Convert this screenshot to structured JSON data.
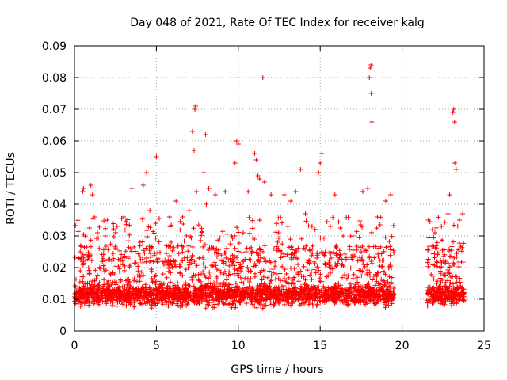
{
  "chart_data": {
    "type": "scatter",
    "title": "Day 048 of 2021, Rate Of TEC Index for receiver kalg",
    "xlabel": "GPS time / hours",
    "ylabel": "ROTI / TECUs",
    "xlim": [
      0,
      25
    ],
    "ylim": [
      0,
      0.09
    ],
    "grid": true,
    "marker": "+",
    "color": "#ff0000",
    "xticks": [
      0,
      5,
      10,
      15,
      20,
      25
    ],
    "yticks": [
      0,
      0.01,
      0.02,
      0.03,
      0.04,
      0.05,
      0.06,
      0.07,
      0.08,
      0.09
    ],
    "xtick_labels": [
      "0",
      "5",
      "10",
      "15",
      "20",
      "25"
    ],
    "ytick_labels": [
      "0",
      "0.01",
      "0.02",
      "0.03",
      "0.04",
      "0.05",
      "0.06",
      "0.07",
      "0.08",
      "0.09"
    ],
    "coverage_hours": [
      [
        0,
        19.5
      ],
      [
        21.5,
        23.8
      ]
    ],
    "series": [
      {
        "name": "ROTI",
        "points": [
          [
            0.2,
            0.012
          ],
          [
            0.35,
            0.025
          ],
          [
            0.5,
            0.044
          ],
          [
            0.55,
            0.045
          ],
          [
            0.9,
            0.018
          ],
          [
            1.0,
            0.046
          ],
          [
            1.1,
            0.043
          ],
          [
            1.4,
            0.031
          ],
          [
            2.0,
            0.035
          ],
          [
            2.6,
            0.033
          ],
          [
            3.0,
            0.036
          ],
          [
            3.5,
            0.045
          ],
          [
            4.0,
            0.028
          ],
          [
            4.2,
            0.046
          ],
          [
            4.4,
            0.05
          ],
          [
            4.6,
            0.038
          ],
          [
            5.0,
            0.055
          ],
          [
            5.4,
            0.018
          ],
          [
            5.8,
            0.036
          ],
          [
            6.2,
            0.041
          ],
          [
            6.6,
            0.036
          ],
          [
            7.0,
            0.038
          ],
          [
            7.2,
            0.063
          ],
          [
            7.3,
            0.057
          ],
          [
            7.35,
            0.07
          ],
          [
            7.4,
            0.071
          ],
          [
            7.45,
            0.044
          ],
          [
            7.9,
            0.05
          ],
          [
            8.0,
            0.062
          ],
          [
            8.05,
            0.04
          ],
          [
            8.2,
            0.045
          ],
          [
            8.6,
            0.043
          ],
          [
            9.2,
            0.044
          ],
          [
            9.6,
            0.03
          ],
          [
            9.8,
            0.053
          ],
          [
            9.9,
            0.06
          ],
          [
            10.0,
            0.059
          ],
          [
            10.3,
            0.031
          ],
          [
            10.6,
            0.044
          ],
          [
            11.0,
            0.056
          ],
          [
            11.1,
            0.054
          ],
          [
            11.2,
            0.049
          ],
          [
            11.3,
            0.048
          ],
          [
            11.5,
            0.08
          ],
          [
            11.6,
            0.047
          ],
          [
            12.0,
            0.043
          ],
          [
            12.4,
            0.028
          ],
          [
            12.8,
            0.043
          ],
          [
            13.2,
            0.041
          ],
          [
            13.5,
            0.044
          ],
          [
            13.8,
            0.051
          ],
          [
            14.1,
            0.037
          ],
          [
            14.5,
            0.033
          ],
          [
            14.9,
            0.05
          ],
          [
            15.0,
            0.053
          ],
          [
            15.1,
            0.056
          ],
          [
            15.6,
            0.025
          ],
          [
            15.9,
            0.043
          ],
          [
            16.4,
            0.03
          ],
          [
            17.0,
            0.03
          ],
          [
            17.6,
            0.044
          ],
          [
            17.9,
            0.045
          ],
          [
            18.0,
            0.08
          ],
          [
            18.05,
            0.083
          ],
          [
            18.1,
            0.084
          ],
          [
            18.12,
            0.075
          ],
          [
            18.15,
            0.066
          ],
          [
            18.5,
            0.036
          ],
          [
            19.0,
            0.041
          ],
          [
            19.3,
            0.043
          ],
          [
            21.6,
            0.035
          ],
          [
            22.0,
            0.031
          ],
          [
            22.4,
            0.033
          ],
          [
            22.8,
            0.037
          ],
          [
            22.9,
            0.043
          ],
          [
            23.1,
            0.069
          ],
          [
            23.15,
            0.07
          ],
          [
            23.2,
            0.066
          ],
          [
            23.22,
            0.053
          ],
          [
            23.3,
            0.051
          ],
          [
            23.5,
            0.035
          ],
          [
            23.7,
            0.037
          ]
        ]
      }
    ]
  }
}
